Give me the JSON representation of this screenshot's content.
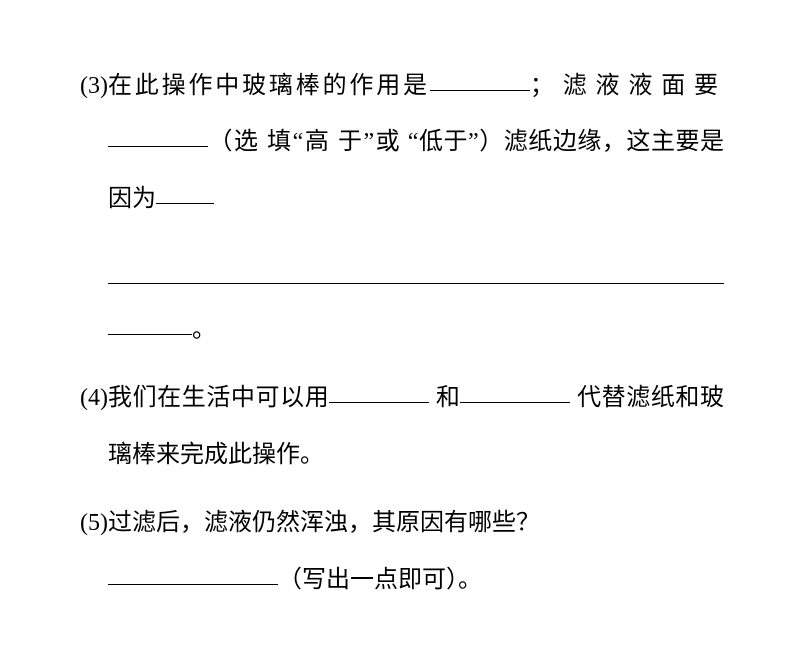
{
  "question3": {
    "number": "(3)",
    "text_part1": "在此操作中玻璃棒的作用是",
    "text_semicolon": "；",
    "text_part2a": "滤",
    "text_part2b": "液",
    "text_part2c": "液",
    "text_part2d": "面",
    "text_part2e": "要",
    "text_part3": "（选",
    "text_part3b": "填“高",
    "text_part3c": "于”或",
    "text_part4": "“低于”）滤纸边缘，这主要是因为",
    "text_period": "。"
  },
  "question4": {
    "number": "(4)",
    "text_part1": "我们在生活中可以用",
    "text_and": " 和",
    "text_part2": "代替滤纸和玻璃棒来完成此操作。"
  },
  "question5": {
    "number": "(5)",
    "text_part1": "过滤后，滤液仍然浑浊，其原因有哪些？",
    "text_part2": "（写出一点即可）。"
  },
  "style": {
    "font_size_pt": 24,
    "line_height": 2.35,
    "text_color": "#000000",
    "background_color": "#ffffff",
    "blank_border_color": "#000000"
  }
}
